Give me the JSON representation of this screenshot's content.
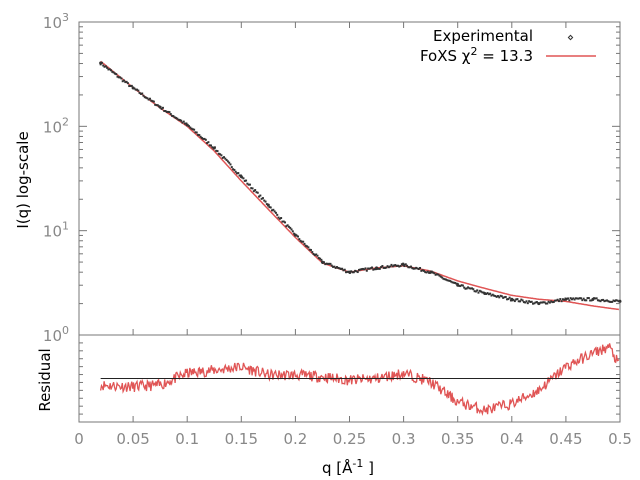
{
  "chart_data": [
    {
      "type": "scatter",
      "ylabel": "I(q) log-scale",
      "yscale": "log",
      "xlim": [
        0,
        0.5
      ],
      "ylim": [
        1,
        1000
      ],
      "ytick_labels": [
        {
          "base": "10",
          "exp": "0"
        },
        {
          "base": "10",
          "exp": "1"
        },
        {
          "base": "10",
          "exp": "2"
        },
        {
          "base": "10",
          "exp": "3"
        }
      ],
      "legend_position": "top-right",
      "grid": false,
      "series": [
        {
          "name": "Experimental",
          "style": "points",
          "color": "#333333",
          "x": [
            0.02,
            0.05,
            0.075,
            0.1,
            0.125,
            0.15,
            0.175,
            0.2,
            0.225,
            0.25,
            0.275,
            0.3,
            0.325,
            0.35,
            0.375,
            0.4,
            0.425,
            0.45,
            0.475,
            0.5
          ],
          "y": [
            405,
            233,
            153,
            103,
            62,
            33,
            17.6,
            9.1,
            5.0,
            4.0,
            4.4,
            4.7,
            4.0,
            3.0,
            2.5,
            2.2,
            2.0,
            2.2,
            2.2,
            2.1
          ]
        },
        {
          "name": "FoXS χ² = 13.3",
          "legend_label": {
            "prefix": "FoXS χ",
            "sup": "2",
            "suffix": " = 13.3"
          },
          "style": "line",
          "color": "#e05555",
          "x": [
            0.02,
            0.05,
            0.075,
            0.1,
            0.125,
            0.15,
            0.175,
            0.2,
            0.225,
            0.25,
            0.275,
            0.3,
            0.325,
            0.35,
            0.375,
            0.4,
            0.425,
            0.45,
            0.475,
            0.5
          ],
          "y": [
            420,
            235,
            150,
            100,
            58,
            30,
            16,
            8.6,
            4.9,
            4.0,
            4.4,
            4.6,
            4.1,
            3.3,
            2.8,
            2.4,
            2.2,
            2.1,
            1.9,
            1.75
          ]
        }
      ]
    },
    {
      "type": "line",
      "xlabel": {
        "prefix": "q [Å",
        "sup": "-1",
        "suffix": " ]"
      },
      "ylabel": "Residual",
      "xlim": [
        0,
        0.5
      ],
      "ylim": [
        -1,
        1
      ],
      "xtick_labels": [
        "0",
        "0.05",
        "0.1",
        "0.15",
        "0.2",
        "0.25",
        "0.3",
        "0.35",
        "0.4",
        "0.45",
        "0.5"
      ],
      "xticks": [
        0,
        0.05,
        0.1,
        0.15,
        0.2,
        0.25,
        0.3,
        0.35,
        0.4,
        0.45,
        0.5
      ],
      "reference_line": 0,
      "series": [
        {
          "color": "#e05555",
          "x": [
            0.02,
            0.05,
            0.075,
            0.1,
            0.125,
            0.15,
            0.175,
            0.2,
            0.225,
            0.25,
            0.275,
            0.3,
            0.325,
            0.35,
            0.375,
            0.4,
            0.425,
            0.45,
            0.475,
            0.49,
            0.5
          ],
          "y": [
            -0.15,
            -0.19,
            -0.15,
            0.12,
            0.19,
            0.27,
            0.08,
            0.08,
            0.04,
            -0.04,
            0,
            0.12,
            -0.08,
            -0.54,
            -0.73,
            -0.58,
            -0.27,
            0.27,
            0.58,
            0.73,
            0.27
          ]
        }
      ]
    }
  ]
}
